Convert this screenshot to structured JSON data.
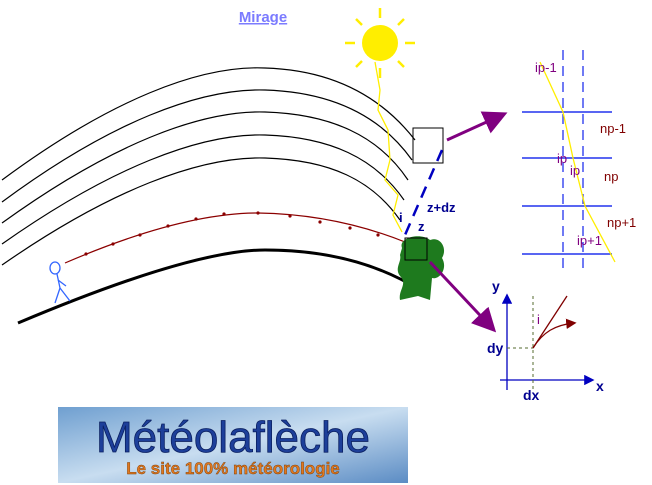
{
  "title": "Mirage",
  "scene_labels": [
    "z+dz",
    "i",
    "z"
  ],
  "refraction_labels": [
    "ip-1",
    "np-1",
    "ip",
    "ip",
    "np",
    "np+1",
    "ip+1"
  ],
  "axes_labels": [
    "y",
    "i",
    "dy",
    "dx",
    "x"
  ],
  "logo": {
    "name": "Météolaflèche",
    "tagline": "Le site 100% météorologie"
  }
}
